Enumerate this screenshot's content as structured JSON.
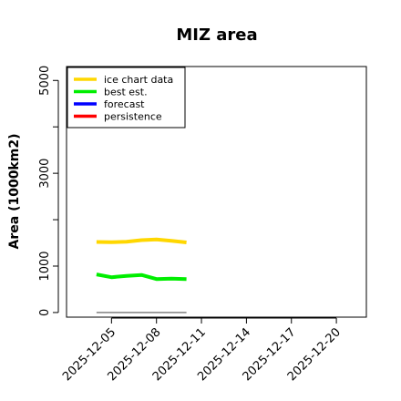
{
  "chart_data": {
    "type": "line",
    "title": "MIZ area",
    "xlabel": "",
    "ylabel": "Area (1000km2)",
    "ylim": [
      -100,
      5300
    ],
    "xlim": [
      "2025-12-02",
      "2025-12-22"
    ],
    "y_ticks": [
      0,
      1000,
      2000,
      3000,
      4000,
      5000
    ],
    "y_tick_labels": [
      "0",
      "1000",
      "",
      "3000",
      "",
      "5000"
    ],
    "x_ticks": [
      {
        "date": "2025-12-05",
        "label": "2025-12-05",
        "color": "#000000"
      },
      {
        "date": "2025-12-08",
        "label": "2025-12-08",
        "color": "#000000"
      },
      {
        "date": "2025-12-11",
        "label": "2025-12-11",
        "color": "#228B22"
      },
      {
        "date": "2025-12-14",
        "label": "2025-12-14",
        "color": "#000000"
      },
      {
        "date": "2025-12-17",
        "label": "2025-12-17",
        "color": "#000000"
      },
      {
        "date": "2025-12-20",
        "label": "2025-12-20",
        "color": "#000000"
      }
    ],
    "legend_position": "top-left",
    "legend": [
      {
        "name": "ice chart data",
        "color": "#FFD700"
      },
      {
        "name": "best est.",
        "color": "#00EE00"
      },
      {
        "name": "forecast",
        "color": "#0000FF"
      },
      {
        "name": "persistence",
        "color": "#FF0000"
      }
    ],
    "series": [
      {
        "name": "ice chart data",
        "color": "#FFD700",
        "x": [
          "2025-12-04",
          "2025-12-05",
          "2025-12-06",
          "2025-12-07",
          "2025-12-08",
          "2025-12-09",
          "2025-12-10"
        ],
        "values": [
          1520,
          1515,
          1525,
          1560,
          1575,
          1545,
          1510
        ]
      },
      {
        "name": "best est.",
        "color": "#00EE00",
        "x": [
          "2025-12-04",
          "2025-12-05",
          "2025-12-06",
          "2025-12-07",
          "2025-12-08",
          "2025-12-09",
          "2025-12-10"
        ],
        "values": [
          820,
          760,
          790,
          810,
          720,
          730,
          720
        ]
      },
      {
        "name": "baseline",
        "color": "#808080",
        "x": [
          "2025-12-04",
          "2025-12-10"
        ],
        "values": [
          0,
          0
        ]
      }
    ]
  }
}
